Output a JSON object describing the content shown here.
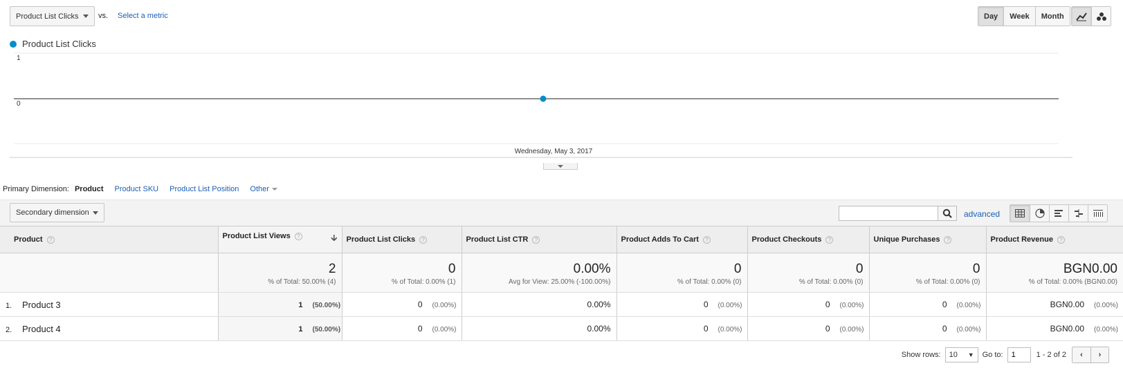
{
  "header": {
    "metric_select": "Product List Clicks",
    "vs_label": "vs.",
    "select_metric_link": "Select a metric",
    "period_buttons": [
      "Day",
      "Week",
      "Month"
    ],
    "active_period": "Day"
  },
  "chart_data": {
    "type": "line",
    "series": [
      {
        "name": "Product List Clicks",
        "color": "#058dc7",
        "values": [
          0
        ]
      }
    ],
    "x": [
      "Wednesday, May 3, 2017"
    ],
    "y_ticks": [
      "1",
      "0"
    ],
    "ylim": [
      0,
      1
    ]
  },
  "legend_label": "Product List Clicks",
  "dimensions": {
    "label": "Primary Dimension:",
    "active": "Product",
    "links": [
      "Product SKU",
      "Product List Position"
    ],
    "other": "Other"
  },
  "toolbar": {
    "secondary_dimension": "Secondary dimension",
    "search_value": "",
    "advanced": "advanced"
  },
  "table": {
    "columns": [
      "Product",
      "Product List Views",
      "Product List Clicks",
      "Product List CTR",
      "Product Adds To Cart",
      "Product Checkouts",
      "Unique Purchases",
      "Product Revenue"
    ],
    "totals": [
      {
        "value": "2",
        "sub": "% of Total: 50.00% (4)"
      },
      {
        "value": "0",
        "sub": "% of Total: 0.00% (1)"
      },
      {
        "value": "0.00%",
        "sub": "Avg for View: 25.00% (-100.00%)"
      },
      {
        "value": "0",
        "sub": "% of Total: 0.00% (0)"
      },
      {
        "value": "0",
        "sub": "% of Total: 0.00% (0)"
      },
      {
        "value": "0",
        "sub": "% of Total: 0.00% (0)"
      },
      {
        "value": "BGN0.00",
        "sub": "% of Total: 0.00% (BGN0.00)"
      }
    ],
    "rows": [
      {
        "num": "1.",
        "product": "Product 3",
        "views": "1",
        "views_pct": "(50.00%)",
        "clicks": "0",
        "clicks_pct": "(0.00%)",
        "ctr": "0.00%",
        "adds": "0",
        "adds_pct": "(0.00%)",
        "checkouts": "0",
        "checkouts_pct": "(0.00%)",
        "purchases": "0",
        "purchases_pct": "(0.00%)",
        "revenue": "BGN0.00",
        "revenue_pct": "(0.00%)"
      },
      {
        "num": "2.",
        "product": "Product 4",
        "views": "1",
        "views_pct": "(50.00%)",
        "clicks": "0",
        "clicks_pct": "(0.00%)",
        "ctr": "0.00%",
        "adds": "0",
        "adds_pct": "(0.00%)",
        "checkouts": "0",
        "checkouts_pct": "(0.00%)",
        "purchases": "0",
        "purchases_pct": "(0.00%)",
        "revenue": "BGN0.00",
        "revenue_pct": "(0.00%)"
      }
    ]
  },
  "pager": {
    "show_rows_label": "Show rows:",
    "rows_value": "10",
    "goto_label": "Go to:",
    "goto_value": "1",
    "range": "1 - 2 of 2"
  }
}
